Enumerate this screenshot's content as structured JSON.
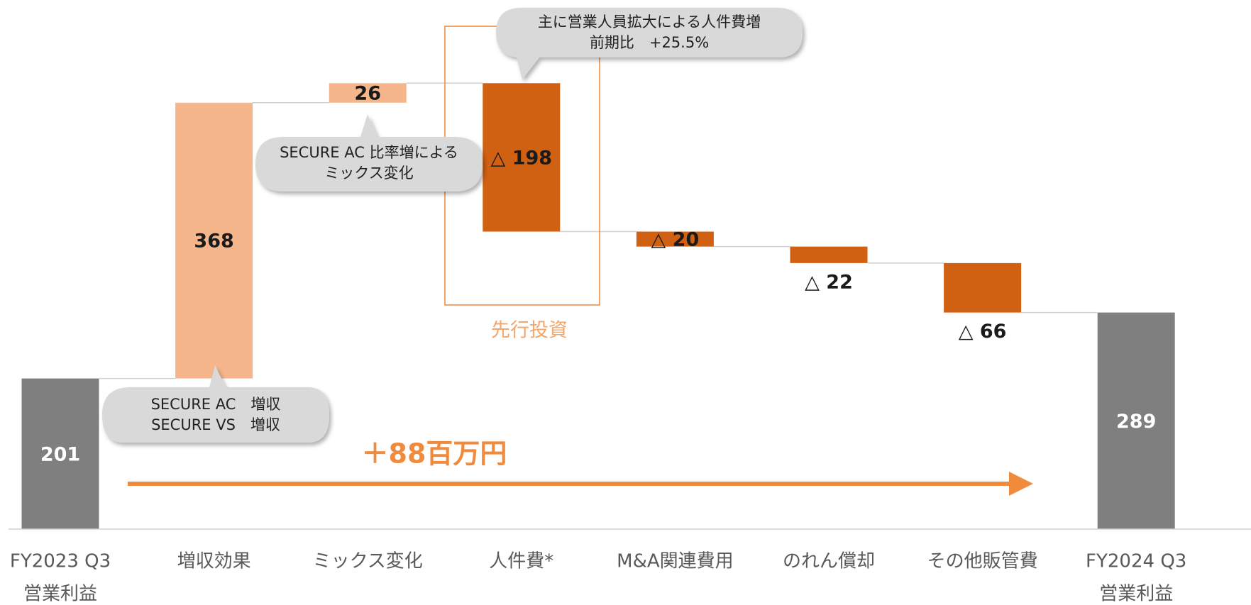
{
  "chart_data": {
    "type": "waterfall",
    "categories": [
      [
        "FY2023 Q3",
        "営業利益"
      ],
      [
        "増収効果"
      ],
      [
        "ミックス変化"
      ],
      [
        "人件費*"
      ],
      [
        "M&A関連費用"
      ],
      [
        "のれん償却"
      ],
      [
        "その他販管費"
      ],
      [
        "FY2024 Q3",
        "営業利益"
      ]
    ],
    "values": [
      201,
      368,
      26,
      -198,
      -20,
      -22,
      -66,
      289
    ],
    "value_labels": [
      "201",
      "368",
      "26",
      "△ 198",
      "△ 20",
      "△ 22",
      "△ 66",
      "289"
    ],
    "measures": [
      "total",
      "relative",
      "relative",
      "relative",
      "relative",
      "relative",
      "relative",
      "total"
    ],
    "label_positions": [
      "inside",
      "inside",
      "inside",
      "inside",
      "inside",
      "below",
      "below",
      "inside"
    ],
    "colors": {
      "total": "#7f7f7f",
      "increase": "#f4b68a",
      "decrease": "#d06012"
    },
    "ylim": [
      0,
      706
    ],
    "annotations": {
      "callouts": [
        {
          "lines": [
            "SECURE AC　増収",
            "SECURE VS　増収"
          ]
        },
        {
          "lines": [
            "SECURE AC 比率増による",
            "ミックス変化"
          ]
        },
        {
          "lines": [
            "主に営業人員拡大による人件費増",
            "前期比　+25.5%"
          ]
        }
      ],
      "bracket_label": "先行投資",
      "change_label": "＋88百万円"
    }
  }
}
